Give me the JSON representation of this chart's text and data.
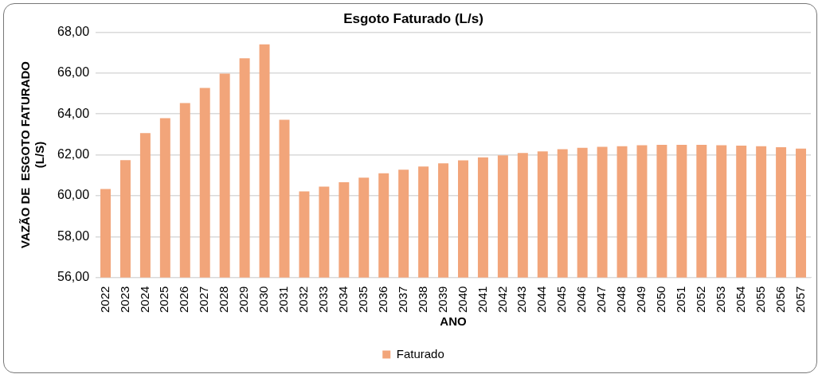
{
  "chart_data": {
    "type": "bar",
    "title": "Esgoto Faturado (L/s)",
    "xlabel": "ANO",
    "ylabel": "VAZÃO DE  ESGOTO FATURADO (L/S)",
    "categories": [
      "2022",
      "2023",
      "2024",
      "2025",
      "2026",
      "2027",
      "2028",
      "2029",
      "2030",
      "2031",
      "2032",
      "2033",
      "2034",
      "2035",
      "2036",
      "2037",
      "2038",
      "2039",
      "2040",
      "2041",
      "2042",
      "2043",
      "2044",
      "2045",
      "2046",
      "2047",
      "2048",
      "2049",
      "2050",
      "2051",
      "2052",
      "2053",
      "2054",
      "2055",
      "2056",
      "2057"
    ],
    "series": [
      {
        "name": "Faturado",
        "color": "#f2a57a",
        "values": [
          60.33,
          61.74,
          63.06,
          63.79,
          64.53,
          65.27,
          65.97,
          66.72,
          67.4,
          63.71,
          60.21,
          60.44,
          60.66,
          60.88,
          61.1,
          61.27,
          61.43,
          61.58,
          61.73,
          61.87,
          61.97,
          62.09,
          62.17,
          62.27,
          62.34,
          62.39,
          62.42,
          62.47,
          62.49,
          62.49,
          62.49,
          62.47,
          62.45,
          62.42,
          62.37,
          62.3
        ]
      }
    ],
    "ylim": [
      56,
      68
    ],
    "yticks": [
      {
        "value": 56,
        "label": "56,00"
      },
      {
        "value": 58,
        "label": "58,00"
      },
      {
        "value": 60,
        "label": "60,00"
      },
      {
        "value": 62,
        "label": "62,00"
      },
      {
        "value": 64,
        "label": "64,00"
      },
      {
        "value": 66,
        "label": "66,00"
      },
      {
        "value": 68,
        "label": "68,00"
      }
    ],
    "grid": "y",
    "legend": "bottom"
  }
}
